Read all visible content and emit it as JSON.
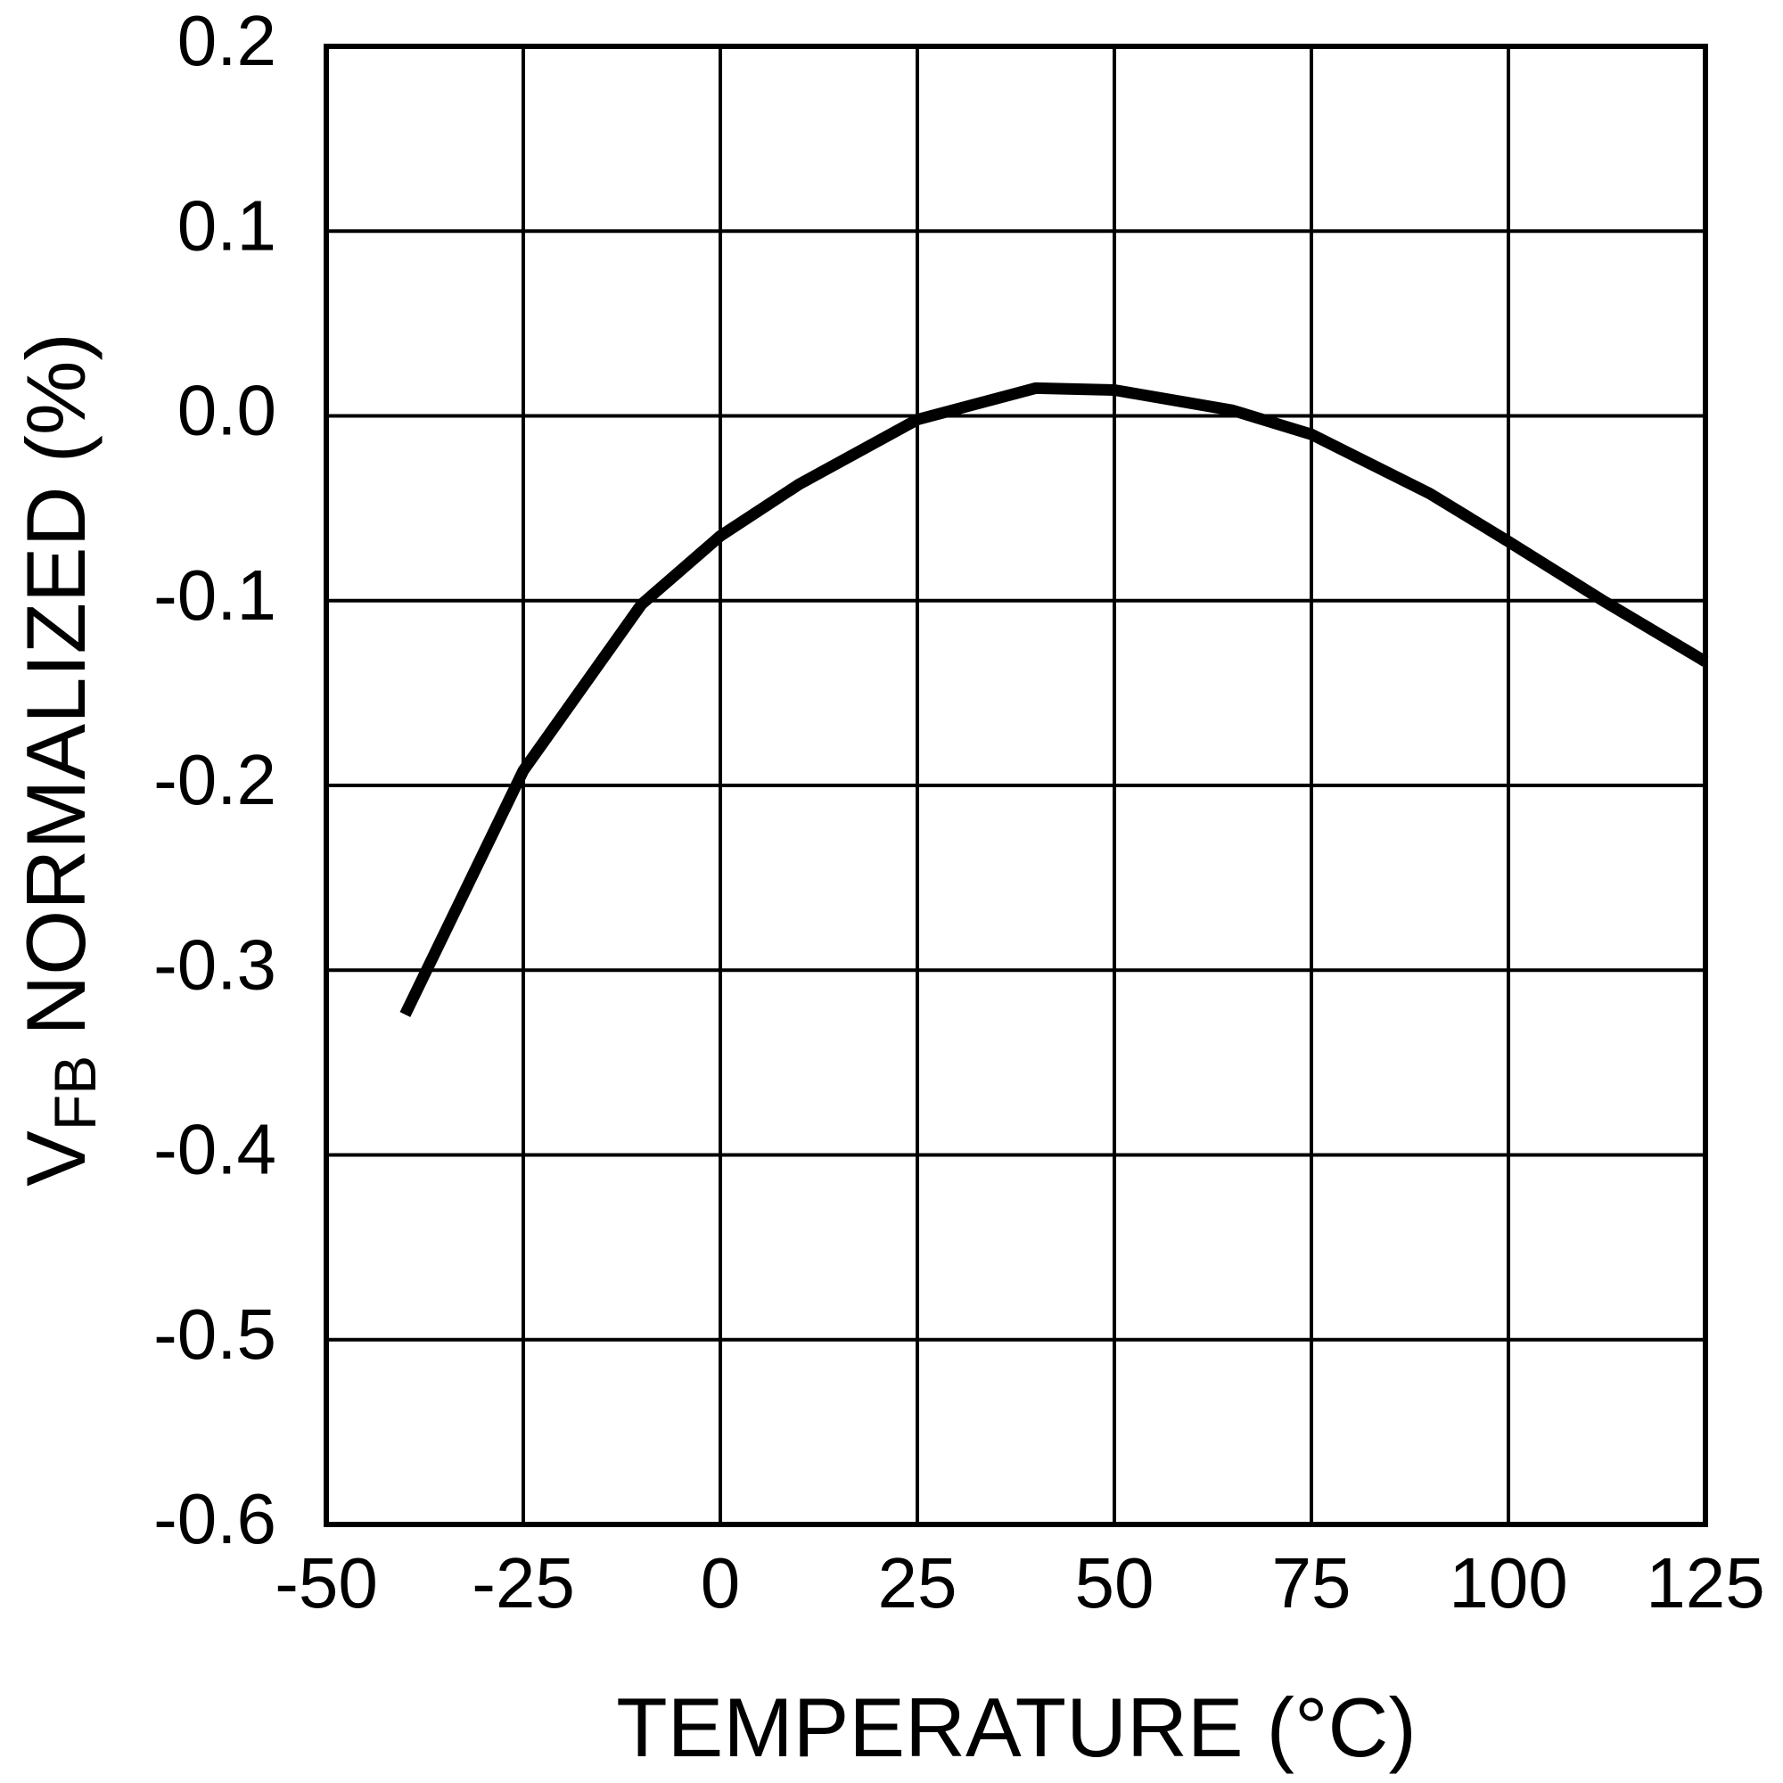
{
  "chart_data": {
    "type": "line",
    "x_label": "TEMPERATURE (°C)",
    "y_label": {
      "main": "V",
      "subscript": "FB",
      "rest": "NORMALIZED (%)"
    },
    "x": [
      -40,
      -25,
      -10,
      0,
      10,
      25,
      40,
      50,
      65,
      75,
      90,
      100,
      112,
      125
    ],
    "series": [
      {
        "color": "#000000",
        "values": [
          -0.324,
          -0.192,
          -0.102,
          -0.065,
          -0.037,
          -0.002,
          0.015,
          0.014,
          0.003,
          -0.01,
          -0.042,
          -0.068,
          -0.1,
          -0.133
        ]
      }
    ],
    "xlim": [
      -50,
      125
    ],
    "xticks": [
      -50,
      -25,
      0,
      25,
      50,
      75,
      100,
      125
    ],
    "ylim": [
      -0.6,
      0.2
    ],
    "yticks": [
      0.2,
      0.1,
      {
        "value": 0,
        "label": "0.0"
      },
      -0.1,
      -0.2,
      -0.3,
      -0.4,
      -0.5,
      -0.6
    ],
    "grid": true
  }
}
